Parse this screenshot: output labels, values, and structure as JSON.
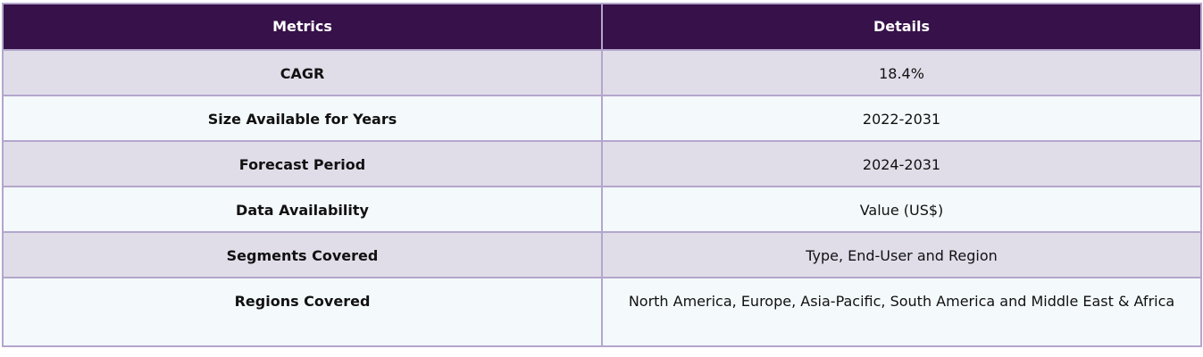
{
  "table": {
    "headers": [
      "Metrics",
      "Details"
    ],
    "rows": [
      {
        "metric": "CAGR",
        "details": "18.4%"
      },
      {
        "metric": "Size Available for Years",
        "details": "2022-2031"
      },
      {
        "metric": "Forecast Period",
        "details": "2024-2031"
      },
      {
        "metric": "Data Availability",
        "details": "Value (US$)"
      },
      {
        "metric": "Segments Covered",
        "details": "Type, End-User and Region"
      },
      {
        "metric": "Regions Covered",
        "details": "North America, Europe, Asia-Pacific, South America and Middle East & Africa"
      }
    ]
  },
  "colors": {
    "header": "#37114a",
    "row_odd": "#e0dde9",
    "row_even": "#f4f9fc",
    "border": "#b3a6cc"
  }
}
